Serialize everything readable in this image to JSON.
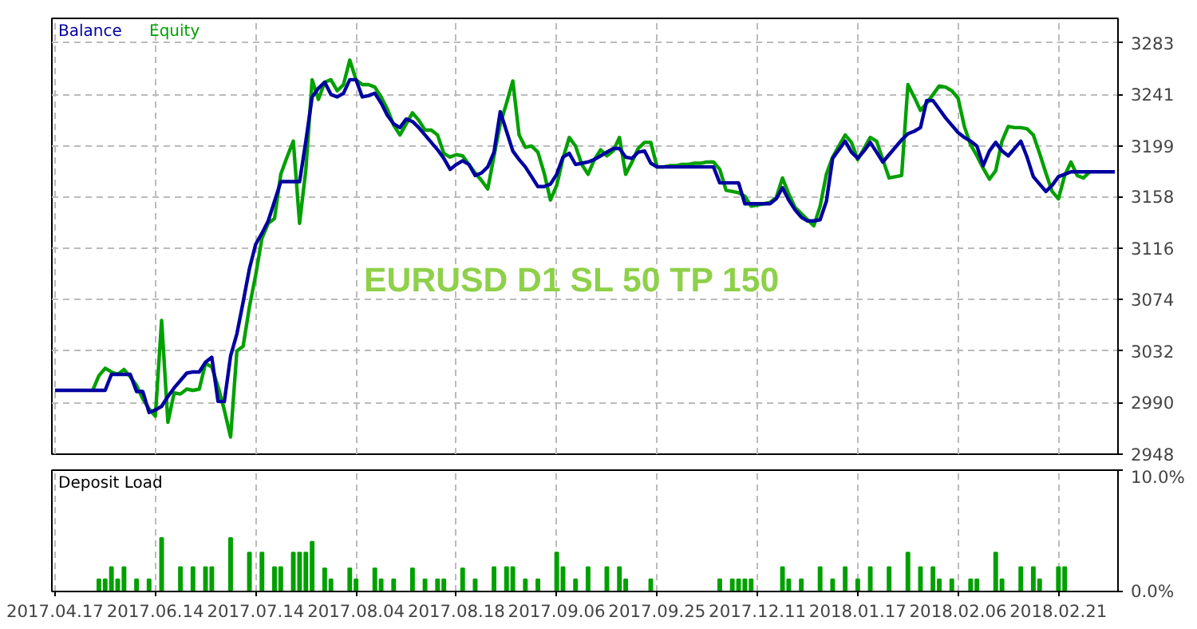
{
  "chart_data": [
    {
      "type": "line",
      "annotations": [
        "EURUSD D1 SL 50 TP 150"
      ],
      "legend": "top left",
      "grid": true,
      "line_style": "solid",
      "tick_labels": "y",
      "categories": [
        "2017.04.17",
        null,
        null,
        null,
        null,
        null,
        null,
        null,
        null,
        null,
        null,
        null,
        null,
        null,
        null,
        null,
        "2017.06.14",
        null,
        null,
        null,
        null,
        null,
        null,
        null,
        null,
        null,
        null,
        null,
        null,
        null,
        null,
        null,
        "2017.07.14",
        null,
        null,
        null,
        null,
        null,
        null,
        null,
        null,
        null,
        null,
        null,
        null,
        null,
        null,
        null,
        "2017.08.04",
        null,
        null,
        null,
        null,
        null,
        null,
        null,
        null,
        null,
        null,
        null,
        null,
        null,
        null,
        null,
        "2017.08.18",
        null,
        null,
        null,
        null,
        null,
        null,
        null,
        null,
        null,
        null,
        null,
        null,
        null,
        null,
        null,
        "2017.09.06",
        null,
        null,
        null,
        null,
        null,
        null,
        null,
        null,
        null,
        null,
        null,
        null,
        null,
        null,
        null,
        "2017.09.25",
        null,
        null,
        null,
        null,
        null,
        null,
        null,
        null,
        null,
        null,
        null,
        null,
        null,
        null,
        null,
        "2017.12.11",
        null,
        null,
        null,
        null,
        null,
        null,
        null,
        null,
        null,
        null,
        null,
        null,
        null,
        null,
        null,
        "2018.01.17",
        null,
        null,
        null,
        null,
        null,
        null,
        null,
        null,
        null,
        null,
        null,
        null,
        null,
        null,
        null,
        "2018.02.06",
        null,
        null,
        null,
        null,
        null,
        null,
        null,
        null,
        null,
        null,
        null,
        null,
        null,
        null,
        null,
        "2018.02.21",
        null,
        null,
        null,
        null,
        null,
        null,
        null,
        null,
        null
      ],
      "ylim": [
        2948,
        3303
      ],
      "yticks": [
        2948,
        2990,
        3032,
        3074,
        3116,
        3158,
        3199,
        3241,
        3283
      ],
      "series": [
        {
          "name": "Equity",
          "color": "#00a000",
          "values": [
            null,
            null,
            null,
            null,
            null,
            null,
            3000,
            3012,
            3018,
            3015,
            3013,
            3017,
            3011,
            3004,
            2993,
            2985,
            2979,
            3057,
            2974,
            2998,
            2997,
            3001,
            3000,
            3001,
            3022,
            3019,
            3003,
            2984,
            2962,
            3032,
            3036,
            3068,
            3094,
            3124,
            3136,
            3140,
            3176,
            3190,
            3203,
            3136,
            3180,
            3253,
            3237,
            3251,
            3253,
            3244,
            3249,
            3269,
            3253,
            3249,
            3249,
            3247,
            3239,
            3229,
            3216,
            3208,
            3217,
            3226,
            3220,
            3212,
            3212,
            3208,
            3193,
            3190,
            3192,
            3191,
            3184,
            3177,
            3171,
            3164,
            3191,
            3217,
            3234,
            3252,
            3208,
            3198,
            3199,
            3194,
            3177,
            3155,
            3167,
            3189,
            3206,
            3199,
            3184,
            3176,
            3188,
            3196,
            3191,
            3195,
            3206,
            3176,
            3186,
            3197,
            3202,
            3202,
            3182,
            3182,
            3183,
            3183,
            3184,
            3184,
            3185,
            3185,
            3186,
            3186,
            3180,
            3163,
            3162,
            3161,
            3158,
            3150,
            3151,
            3152,
            3153,
            3157,
            3173,
            3160,
            3149,
            3144,
            3139,
            3134,
            3150,
            3176,
            3190,
            3199,
            3208,
            3202,
            3188,
            3197,
            3206,
            3203,
            3188,
            3173,
            3174,
            3175,
            3249,
            3239,
            3228,
            3234,
            3241,
            3248,
            3247,
            3244,
            3238,
            3215,
            3200,
            3191,
            3181,
            3172,
            3179,
            3203,
            3215,
            3214,
            3214,
            3213,
            3208,
            3193,
            3177,
            3162,
            3156,
            3175,
            3186,
            3175,
            3173,
            3178,
            null,
            null,
            null,
            null
          ]
        },
        {
          "name": "Balance",
          "color": "#0000a0",
          "values": [
            3000,
            3000,
            3000,
            3000,
            3000,
            3000,
            3000,
            3000,
            3000,
            3013,
            3013,
            3013,
            3013,
            2999,
            2999,
            2982,
            2984,
            2987,
            2995,
            3002,
            3008,
            3014,
            3015,
            3015,
            3023,
            3027,
            2991,
            2991,
            3028,
            3046,
            3072,
            3099,
            3119,
            3128,
            3138,
            3154,
            3170,
            3170,
            3170,
            3170,
            3203,
            3239,
            3246,
            3251,
            3241,
            3239,
            3242,
            3253,
            3253,
            3239,
            3240,
            3242,
            3234,
            3224,
            3217,
            3214,
            3221,
            3219,
            3214,
            3208,
            3202,
            3196,
            3189,
            3180,
            3184,
            3187,
            3184,
            3175,
            3177,
            3182,
            3194,
            3227,
            3211,
            3195,
            3188,
            3182,
            3174,
            3166,
            3166,
            3168,
            3176,
            3190,
            3193,
            3184,
            3185,
            3186,
            3188,
            3191,
            3194,
            3197,
            3197,
            3190,
            3189,
            3194,
            3195,
            3185,
            3182,
            3182,
            3182,
            3182,
            3182,
            3182,
            3182,
            3182,
            3182,
            3182,
            3169,
            3169,
            3169,
            3169,
            3152,
            3152,
            3152,
            3152,
            3152,
            3156,
            3165,
            3155,
            3147,
            3141,
            3138,
            3138,
            3139,
            3154,
            3189,
            3196,
            3203,
            3194,
            3189,
            3195,
            3202,
            3194,
            3186,
            3192,
            3198,
            3204,
            3209,
            3211,
            3214,
            3236,
            3236,
            3229,
            3222,
            3216,
            3210,
            3206,
            3203,
            3199,
            3183,
            3195,
            3202,
            3195,
            3191,
            3197,
            3203,
            3190,
            3174,
            3168,
            3162,
            3167,
            3174,
            3176,
            3178,
            3178,
            3178,
            3178,
            3178,
            3178,
            3178,
            3178
          ]
        }
      ]
    },
    {
      "type": "bar",
      "title": "Deposit Load",
      "grid": true,
      "categories": [
        "2017.04.17",
        null,
        null,
        null,
        null,
        null,
        null,
        null,
        null,
        null,
        null,
        null,
        null,
        null,
        null,
        null,
        "2017.06.14",
        null,
        null,
        null,
        null,
        null,
        null,
        null,
        null,
        null,
        null,
        null,
        null,
        null,
        null,
        null,
        "2017.07.14",
        null,
        null,
        null,
        null,
        null,
        null,
        null,
        null,
        null,
        null,
        null,
        null,
        null,
        null,
        null,
        "2017.08.04",
        null,
        null,
        null,
        null,
        null,
        null,
        null,
        null,
        null,
        null,
        null,
        null,
        null,
        null,
        null,
        "2017.08.18",
        null,
        null,
        null,
        null,
        null,
        null,
        null,
        null,
        null,
        null,
        null,
        null,
        null,
        null,
        null,
        "2017.09.06",
        null,
        null,
        null,
        null,
        null,
        null,
        null,
        null,
        null,
        null,
        null,
        null,
        null,
        null,
        null,
        "2017.09.25",
        null,
        null,
        null,
        null,
        null,
        null,
        null,
        null,
        null,
        null,
        null,
        null,
        null,
        null,
        null,
        "2017.12.11",
        null,
        null,
        null,
        null,
        null,
        null,
        null,
        null,
        null,
        null,
        null,
        null,
        null,
        null,
        null,
        "2018.01.17",
        null,
        null,
        null,
        null,
        null,
        null,
        null,
        null,
        null,
        null,
        null,
        null,
        null,
        null,
        null,
        "2018.02.06",
        null,
        null,
        null,
        null,
        null,
        null,
        null,
        null,
        null,
        null,
        null,
        null,
        null,
        null,
        null,
        "2018.02.21",
        null,
        null,
        null,
        null,
        null,
        null,
        null,
        null,
        null
      ],
      "ylim": [
        0,
        10
      ],
      "yticks": [
        {
          "value": 0,
          "label": "0.0%"
        },
        {
          "value": 10,
          "label": "10.0%"
        }
      ],
      "series": [
        {
          "color": "#00a000",
          "values": [
            null,
            null,
            null,
            null,
            null,
            null,
            null,
            1.0,
            1.0,
            2.0,
            1.0,
            2.0,
            null,
            1.0,
            null,
            1.0,
            null,
            4.4,
            null,
            null,
            2.0,
            null,
            2.0,
            null,
            2.0,
            2.0,
            null,
            null,
            4.4,
            null,
            null,
            3.2,
            null,
            3.2,
            null,
            2.0,
            2.0,
            null,
            3.2,
            3.2,
            3.2,
            4.1,
            null,
            1.9,
            1.0,
            null,
            null,
            1.9,
            1.0,
            null,
            null,
            1.9,
            1.0,
            null,
            1.0,
            null,
            null,
            1.9,
            null,
            1.0,
            null,
            1.0,
            1.0,
            null,
            null,
            1.9,
            null,
            1.0,
            null,
            null,
            2.0,
            null,
            2.0,
            2.0,
            null,
            1.0,
            null,
            1.0,
            null,
            null,
            3.2,
            2.0,
            null,
            1.0,
            null,
            2.0,
            null,
            null,
            2.0,
            null,
            2.0,
            1.0,
            null,
            null,
            null,
            1.0,
            null,
            null,
            null,
            null,
            null,
            null,
            null,
            null,
            null,
            null,
            1.0,
            null,
            1.0,
            1.0,
            1.0,
            1.0,
            null,
            null,
            null,
            null,
            2.0,
            1.0,
            null,
            1.0,
            null,
            null,
            2.0,
            null,
            1.0,
            null,
            2.0,
            null,
            1.0,
            null,
            2.0,
            null,
            null,
            2.0,
            null,
            null,
            3.2,
            null,
            2.0,
            null,
            2.0,
            1.0,
            null,
            1.0,
            null,
            null,
            1.0,
            1.0,
            null,
            null,
            3.2,
            1.0,
            null,
            null,
            2.0,
            null,
            2.0,
            1.0,
            null,
            null,
            2.0,
            2.0,
            null,
            null,
            null,
            null,
            null,
            null,
            null,
            null
          ]
        }
      ]
    }
  ]
}
